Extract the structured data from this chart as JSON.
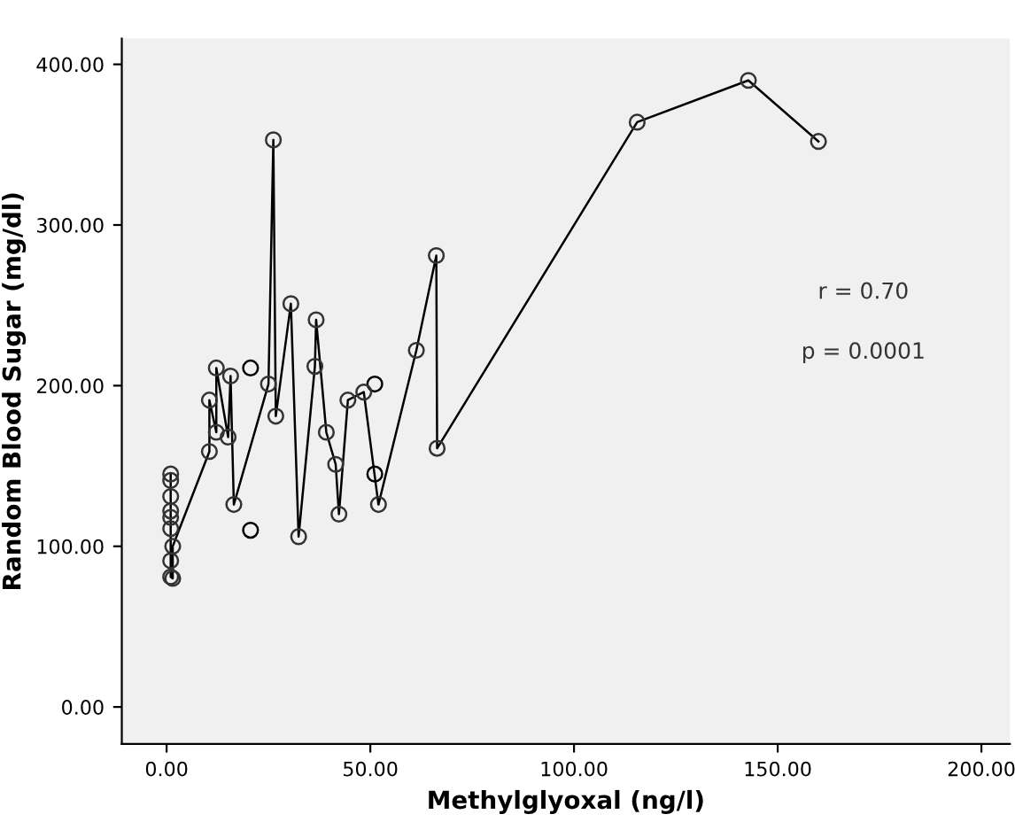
{
  "chart_data": {
    "type": "line",
    "xlabel": "Methylglyoxal (ng/l)",
    "ylabel": "Random Blood Sugar (mg/dl)",
    "annotations": [
      "r = 0.70",
      "p = 0.0001"
    ],
    "xlim": [
      -11,
      207
    ],
    "ylim": [
      -23,
      416
    ],
    "xticks": [
      {
        "value": 0,
        "label": "0.00"
      },
      {
        "value": 50,
        "label": "50.00"
      },
      {
        "value": 100,
        "label": "100.00"
      },
      {
        "value": 150,
        "label": "150.00"
      },
      {
        "value": 200,
        "label": "200.00"
      }
    ],
    "yticks": [
      {
        "value": 0,
        "label": "0.00"
      },
      {
        "value": 100,
        "label": "100.00"
      },
      {
        "value": 200,
        "label": "200.00"
      },
      {
        "value": 300,
        "label": "300.00"
      },
      {
        "value": 400,
        "label": "400.00"
      }
    ],
    "grid": false,
    "marker": "circle",
    "line_style": "solid",
    "series": [
      {
        "color": "#000000",
        "x": [
          1,
          1,
          1,
          1,
          1,
          1,
          1,
          1,
          1.5,
          1.5,
          10.5,
          10.5,
          12.2,
          12.2,
          15.1,
          15.7,
          16.5,
          25,
          26.2,
          26.8,
          30.5,
          32.4,
          36.4,
          36.7,
          39.2,
          41.5,
          42.3,
          44.5,
          48.4,
          52,
          61.3,
          66.2,
          66.4,
          115.5,
          142.8,
          160
        ],
        "values": [
          145,
          141,
          131,
          122,
          118,
          111,
          91,
          81,
          80,
          100,
          159,
          191,
          171,
          211,
          168,
          206,
          126,
          201,
          353,
          181,
          251,
          106,
          212,
          241,
          171,
          151,
          120,
          191,
          196,
          126,
          222,
          281,
          161,
          364,
          390,
          352
        ]
      },
      {
        "type": "scatter",
        "color": "#000000",
        "x": [
          20.6,
          20.6,
          51.1,
          51.1
        ],
        "values": [
          211,
          110,
          145,
          201
        ]
      }
    ]
  }
}
